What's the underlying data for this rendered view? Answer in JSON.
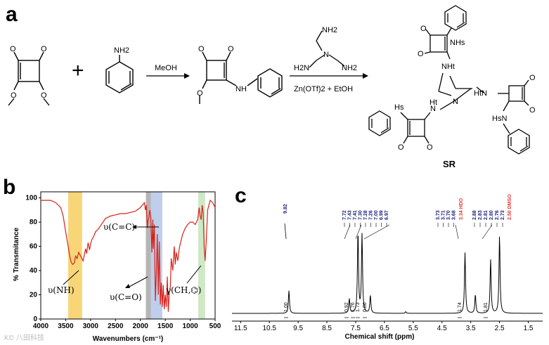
{
  "panels": {
    "a": "a",
    "b": "b",
    "c": "c"
  },
  "scheme": {
    "reagent1_ome_left": "O",
    "reagent1_ome_right": "O",
    "aniline_nh2": "NH2",
    "plus": "+",
    "step1_reagent": "MeOH",
    "product_nh": "NH",
    "tren_nh2_top": "NH2",
    "tren_nh2_left": "H2N",
    "tren_nh2_right": "NH2",
    "tren_n": "N",
    "step2_conditions": "Zn(OTf)2 + EtOH",
    "sr_labels": {
      "nhs_top": "NHs",
      "nht_top": "NHt",
      "htn_right": "HtN",
      "hsn_right": "HsN",
      "hs_left": "Hs",
      "ht_left": "Ht",
      "n_left": "N",
      "n_center": "N"
    },
    "product_name": "SR"
  },
  "ir": {
    "ylabel": "% Transmitance",
    "xlabel": "Wavenumbers (cm⁻¹)",
    "annotations": {
      "cc": "υ(C=C)",
      "nh": "υ(NH)",
      "co": "υ(C=O)",
      "ch": "γ(CH,⌬)"
    },
    "colors": {
      "line": "#d9211b",
      "nh_band": "#f6c84a",
      "gray_band": "#9c9c9c",
      "blue_band": "#a9bde3",
      "green_band": "#bfe0b2"
    }
  },
  "nmr": {
    "xlabel": "Chemical shift (ppm)",
    "labels_left": [
      "9.82"
    ],
    "labels_arom": [
      "7.72",
      "7.43",
      "7.41",
      "7.30",
      "7.28",
      "7.26",
      "7.00",
      "6.99",
      "6.97"
    ],
    "labels_mid": [
      "3.73",
      "3.71",
      "3.70",
      "3.68"
    ],
    "labels_hdo": "3.34 HDO",
    "labels_ali": [
      "2.88",
      "2.83",
      "2.81",
      "2.80",
      "2.76",
      "2.73"
    ],
    "labels_dmso": "2.50 DMSO",
    "integrals": [
      "1.00",
      "0.92",
      "1.76",
      "1.73",
      "0.86",
      "1.74",
      "1.81"
    ],
    "colors": {
      "label": "#1a237e",
      "solvent": "#e53935"
    }
  },
  "chart_data": [
    {
      "type": "line",
      "title": "",
      "xlabel": "Wavenumbers (cm⁻¹)",
      "ylabel": "% Transmitance",
      "xlim": [
        4000,
        500
      ],
      "ylim": [
        0,
        105
      ],
      "x_ticks": [
        4000,
        3500,
        3000,
        2500,
        2000,
        1500,
        1000,
        500
      ],
      "y_ticks": [
        0,
        20,
        40,
        60,
        80,
        100
      ],
      "series": [
        {
          "x": [
            4000,
            3800,
            3700,
            3600,
            3550,
            3500,
            3450,
            3420,
            3390,
            3360,
            3330,
            3300,
            3270,
            3240,
            3200,
            3150,
            3100,
            3080,
            3050,
            3020,
            3000,
            2970,
            2940,
            2900,
            2850,
            2800,
            2700,
            2600,
            2500,
            2400,
            2300,
            2200,
            2100,
            2000,
            1960,
            1920,
            1900,
            1880,
            1860,
            1850,
            1830,
            1810,
            1790,
            1770,
            1750,
            1740,
            1720,
            1700,
            1680,
            1660,
            1640,
            1620,
            1600,
            1580,
            1560,
            1540,
            1520,
            1500,
            1480,
            1460,
            1440,
            1420,
            1400,
            1380,
            1350,
            1320,
            1300,
            1280,
            1250,
            1220,
            1200,
            1150,
            1100,
            1050,
            1000,
            950,
            900,
            850,
            820,
            800,
            780,
            760,
            740,
            720,
            700,
            680,
            650,
            600,
            550,
            500
          ],
          "y": [
            98,
            98,
            96,
            92,
            85,
            72,
            60,
            52,
            47,
            45,
            46,
            52,
            50,
            55,
            52,
            48,
            58,
            54,
            63,
            57,
            62,
            66,
            68,
            72,
            74,
            77,
            83,
            85,
            86,
            87,
            87,
            88,
            89,
            92,
            94,
            96,
            90,
            94,
            75,
            80,
            84,
            90,
            84,
            55,
            82,
            58,
            78,
            15,
            38,
            70,
            20,
            64,
            12,
            30,
            10,
            28,
            8,
            20,
            10,
            35,
            6,
            22,
            24,
            50,
            40,
            60,
            45,
            55,
            48,
            58,
            62,
            70,
            75,
            78,
            80,
            80,
            78,
            82,
            92,
            85,
            82,
            94,
            88,
            60,
            48,
            62,
            90,
            98,
            96,
            92
          ]
        }
      ]
    },
    {
      "type": "line",
      "title": "",
      "xlabel": "Chemical shift (ppm)",
      "xlim": [
        11.8,
        1.0
      ],
      "x_ticks": [
        11.5,
        10.5,
        9.5,
        8.5,
        7.5,
        6.5,
        5.5,
        4.5,
        3.5,
        2.5,
        1.5
      ],
      "series": [
        {
          "name": "",
          "peaks": [
            {
              "ppm": 9.82,
              "height": 0.27
            },
            {
              "ppm": 7.72,
              "height": 0.17
            },
            {
              "ppm": 7.42,
              "height": 0.96
            },
            {
              "ppm": 7.28,
              "height": 0.93
            },
            {
              "ppm": 6.99,
              "height": 0.21
            },
            {
              "ppm": 5.76,
              "height": 0.02
            },
            {
              "ppm": 3.7,
              "height": 0.72
            },
            {
              "ppm": 3.34,
              "height": 0.22
            },
            {
              "ppm": 2.81,
              "height": 0.64
            },
            {
              "ppm": 2.5,
              "height": 0.92
            }
          ]
        }
      ]
    }
  ]
}
